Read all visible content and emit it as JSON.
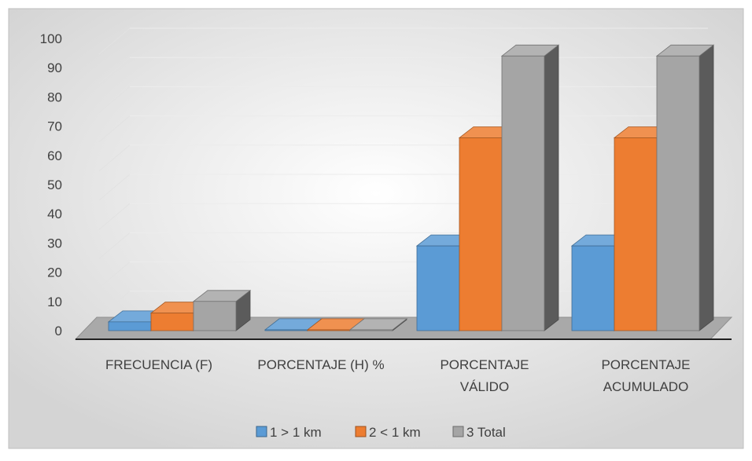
{
  "chart_data": {
    "type": "bar",
    "title": "",
    "xlabel": "",
    "ylabel": "",
    "ylim": [
      0,
      100
    ],
    "y_ticks": [
      0,
      10,
      20,
      30,
      40,
      50,
      60,
      70,
      80,
      90,
      100
    ],
    "categories": [
      [
        "FRECUENCIA (F)"
      ],
      [
        "PORCENTAJE (H) %"
      ],
      [
        "PORCENTAJE",
        "VÁLIDO"
      ],
      [
        "PORCENTAJE",
        "ACUMULADO"
      ]
    ],
    "series": [
      {
        "name": "1 > 1 km",
        "color": "#5B9BD5",
        "values": [
          3,
          0.3,
          29,
          29
        ]
      },
      {
        "name": "2 < 1 km",
        "color": "#ED7D31",
        "values": [
          6,
          0.3,
          66,
          66
        ]
      },
      {
        "name": "3 Total",
        "color": "#A5A5A5",
        "values": [
          10,
          0.3,
          94,
          94
        ]
      }
    ],
    "grid": true,
    "legend_position": "bottom",
    "style": "3d-clustered-column"
  }
}
